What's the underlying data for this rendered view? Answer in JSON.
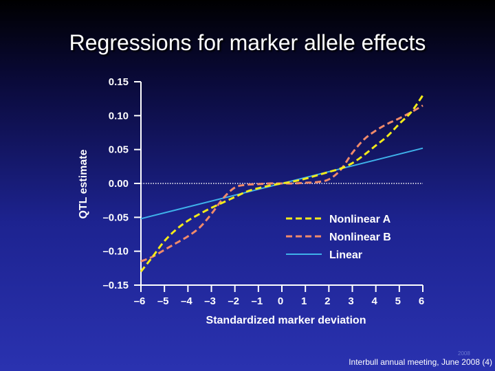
{
  "slide": {
    "title": "Regressions for marker allele effects",
    "footer": "Interbull annual meeting, June 2008 (4)",
    "small_year": "2008"
  },
  "colors": {
    "nonlinear_a": "#f2ea1a",
    "nonlinear_b": "#f08a6a",
    "linear": "#3fb2ea",
    "axis": "#ffffff"
  },
  "chart_data": {
    "type": "line",
    "xlabel": "Standardized marker deviation",
    "ylabel": "QTL estimate",
    "xlim": [
      -6,
      6
    ],
    "ylim": [
      -0.15,
      0.15
    ],
    "x_ticks": [
      -6,
      -5,
      -4,
      -3,
      -2,
      -1,
      0,
      1,
      2,
      3,
      4,
      5,
      6
    ],
    "x_tick_labels": [
      "–6",
      "–5",
      "–4",
      "–3",
      "–2",
      "–1",
      "0",
      "1",
      "2",
      "3",
      "4",
      "5",
      "6"
    ],
    "y_ticks": [
      0.15,
      0.1,
      0.05,
      0.0,
      -0.05,
      -0.1,
      -0.15
    ],
    "y_tick_labels": [
      "0.15",
      "0.10",
      "0.05",
      "0.00",
      "–0.05",
      "–0.10",
      "–0.15"
    ],
    "zero_line": true,
    "legend_position": "lower-right",
    "series": [
      {
        "name": "Nonlinear A",
        "style": "dashed",
        "x": [
          -6,
          -5.5,
          -5,
          -4.5,
          -4,
          -3.5,
          -3,
          -2.5,
          -2,
          -1.5,
          -1,
          -0.5,
          0,
          0.5,
          1,
          1.5,
          2,
          2.5,
          3,
          3.5,
          4,
          4.5,
          5,
          5.5,
          6
        ],
        "y": [
          -0.13,
          -0.108,
          -0.085,
          -0.068,
          -0.055,
          -0.045,
          -0.036,
          -0.028,
          -0.02,
          -0.012,
          -0.007,
          -0.003,
          0.0,
          0.003,
          0.007,
          0.012,
          0.017,
          0.022,
          0.03,
          0.042,
          0.056,
          0.07,
          0.088,
          0.105,
          0.13
        ]
      },
      {
        "name": "Nonlinear B",
        "style": "dashed",
        "x": [
          -6,
          -5.5,
          -5,
          -4.5,
          -4,
          -3.5,
          -3,
          -2.5,
          -2,
          -1.5,
          -1,
          -0.5,
          0,
          0.5,
          1,
          1.5,
          2,
          2.5,
          3,
          3.5,
          4,
          4.5,
          5,
          5.5,
          6
        ],
        "y": [
          -0.115,
          -0.108,
          -0.098,
          -0.088,
          -0.078,
          -0.065,
          -0.045,
          -0.022,
          -0.006,
          -0.002,
          -0.001,
          0.0,
          0.0,
          0.0,
          0.001,
          0.002,
          0.006,
          0.02,
          0.045,
          0.065,
          0.078,
          0.088,
          0.096,
          0.105,
          0.115
        ]
      },
      {
        "name": "Linear",
        "style": "solid",
        "x": [
          -6,
          6
        ],
        "y": [
          -0.052,
          0.052
        ]
      }
    ]
  }
}
